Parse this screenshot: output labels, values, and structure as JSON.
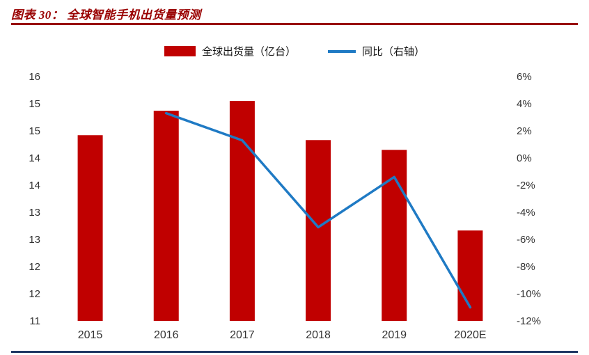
{
  "header": {
    "title": "图表 30： 全球智能手机出货量预测"
  },
  "colors": {
    "title_text": "#990000",
    "title_rule": "#990000",
    "bottom_rule": "#1f3864",
    "bar": "#c00000",
    "line": "#1f7ac4",
    "axis_text": "#333333"
  },
  "chart_data": {
    "type": "bar+line",
    "title": "图表 30： 全球智能手机出货量预测",
    "categories": [
      "2015",
      "2016",
      "2017",
      "2018",
      "2019",
      "2020E"
    ],
    "series": [
      {
        "name": "全球出货量（亿台）",
        "type": "bar",
        "axis": "left",
        "color": "#c00000",
        "values": [
          14.8,
          15.3,
          15.5,
          14.7,
          14.5,
          12.85
        ]
      },
      {
        "name": "同比（右轴）",
        "type": "line",
        "axis": "right",
        "color": "#1f7ac4",
        "unit": "%",
        "values": [
          null,
          3.3,
          1.3,
          -5.1,
          -1.4,
          -11.0
        ]
      }
    ],
    "left_axis": {
      "min": 11,
      "max": 16,
      "tick_labels": [
        "16",
        "15",
        "15",
        "14",
        "14",
        "13",
        "13",
        "12",
        "12",
        "11"
      ]
    },
    "right_axis": {
      "min": -12,
      "max": 6,
      "tick_labels": [
        "6%",
        "4%",
        "2%",
        "0%",
        "-2%",
        "-4%",
        "-6%",
        "-8%",
        "-10%",
        "-12%"
      ]
    },
    "grid": false,
    "legend_position": "top"
  }
}
